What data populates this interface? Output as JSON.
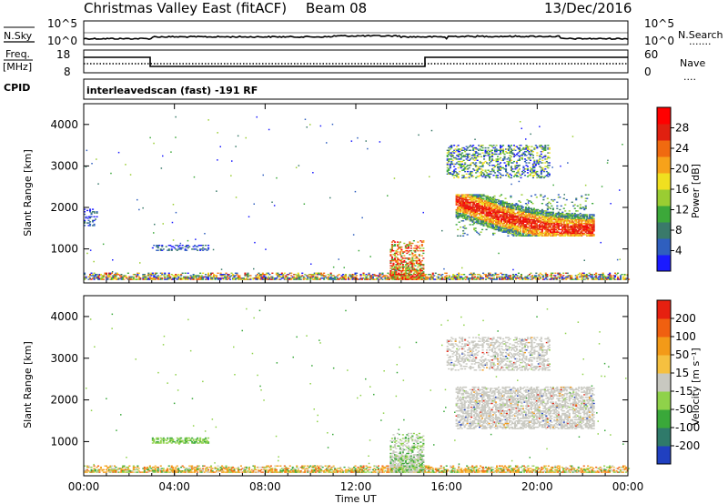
{
  "header": {
    "title": "Christmas Valley East (fitACF)",
    "beam": "Beam 08",
    "date": "13/Dec/2016"
  },
  "noise_panel": {
    "left_label": "N.Sky",
    "left_ticks": [
      "10^5",
      "10^0"
    ],
    "right_ticks": [
      "10^5",
      "10^0"
    ],
    "right_label": "N.Search",
    "right_legend": "......."
  },
  "freq_panel": {
    "left_label_top": "Freq.",
    "left_label_unit": "[MHz]",
    "left_ticks": [
      "18",
      "8"
    ],
    "right_ticks": [
      "60",
      "0"
    ],
    "right_label": "Nave",
    "right_legend": "....",
    "cpid_label": "CPID",
    "cpid_text": "interleavedscan (fast) -191 RF"
  },
  "chart_data": [
    {
      "type": "heatmap",
      "name": "power",
      "ylabel": "Slant Range [km]",
      "xlabel": "",
      "ylim": [
        180,
        4500
      ],
      "xlim": [
        0,
        24
      ],
      "x_ticks": [
        0,
        4,
        8,
        12,
        16,
        20,
        24
      ],
      "y_ticks": [
        1000,
        2000,
        3000,
        4000
      ],
      "y_tick_labels": [
        "1000",
        "2000",
        "3000",
        "4000"
      ],
      "colorbar": {
        "label": "Power [dB]",
        "tick_labels": [
          "28",
          "24",
          "20",
          "16",
          "12",
          "8",
          "4"
        ],
        "colors": [
          "#1a1aff",
          "#2f5fbf",
          "#3a7a6a",
          "#3ca83a",
          "#9acd32",
          "#f0e020",
          "#f7a21a",
          "#f06a10",
          "#e02010",
          "#ff0000"
        ]
      },
      "echo_regions": [
        {
          "t": [
            0.0,
            24.0
          ],
          "r": [
            250,
            420
          ],
          "level": "mixed-low-high"
        },
        {
          "t": [
            13.5,
            15.0
          ],
          "r": [
            250,
            1200
          ],
          "level": "high"
        },
        {
          "t": [
            16.4,
            22.5
          ],
          "r": [
            1300,
            2300
          ],
          "level": "high-core"
        },
        {
          "t": [
            16.0,
            20.5
          ],
          "r": [
            2700,
            3500
          ],
          "level": "mixed"
        },
        {
          "t": [
            3.0,
            5.5
          ],
          "r": [
            950,
            1100
          ],
          "level": "low"
        },
        {
          "t": [
            0.0,
            0.6
          ],
          "r": [
            1550,
            1950
          ],
          "level": "low"
        }
      ]
    },
    {
      "type": "heatmap",
      "name": "velocity",
      "ylabel": "Slant Range [km]",
      "xlabel": "Time UT",
      "ylim": [
        180,
        4500
      ],
      "xlim": [
        0,
        24
      ],
      "x_ticks": [
        0,
        4,
        8,
        12,
        16,
        20,
        24
      ],
      "x_tick_labels": [
        "00:00",
        "04:00",
        "08:00",
        "12:00",
        "16:00",
        "20:00",
        "00:00"
      ],
      "y_ticks": [
        1000,
        2000,
        3000,
        4000
      ],
      "y_tick_labels": [
        "1000",
        "2000",
        "3000",
        "4000"
      ],
      "colorbar": {
        "label": "Velocity [m s⁻¹]",
        "tick_labels": [
          "200",
          "100",
          "50",
          "15",
          "-15",
          "-50",
          "-100",
          "-200"
        ],
        "colors": [
          "#2040c0",
          "#2f7a6a",
          "#3aa83a",
          "#8fd24a",
          "#c8c8c0",
          "#f5c040",
          "#f39a18",
          "#f06010",
          "#e62010"
        ]
      },
      "echo_regions": [
        {
          "t": [
            0.0,
            24.0
          ],
          "r": [
            250,
            420
          ],
          "level": "mixed-orange-green"
        },
        {
          "t": [
            13.5,
            15.0
          ],
          "r": [
            250,
            1200
          ],
          "level": "grey-green"
        },
        {
          "t": [
            16.4,
            22.5
          ],
          "r": [
            1300,
            2300
          ],
          "level": "grey"
        },
        {
          "t": [
            16.0,
            20.5
          ],
          "r": [
            2700,
            3500
          ],
          "level": "grey"
        },
        {
          "t": [
            3.0,
            5.5
          ],
          "r": [
            950,
            1100
          ],
          "level": "green"
        }
      ]
    }
  ]
}
